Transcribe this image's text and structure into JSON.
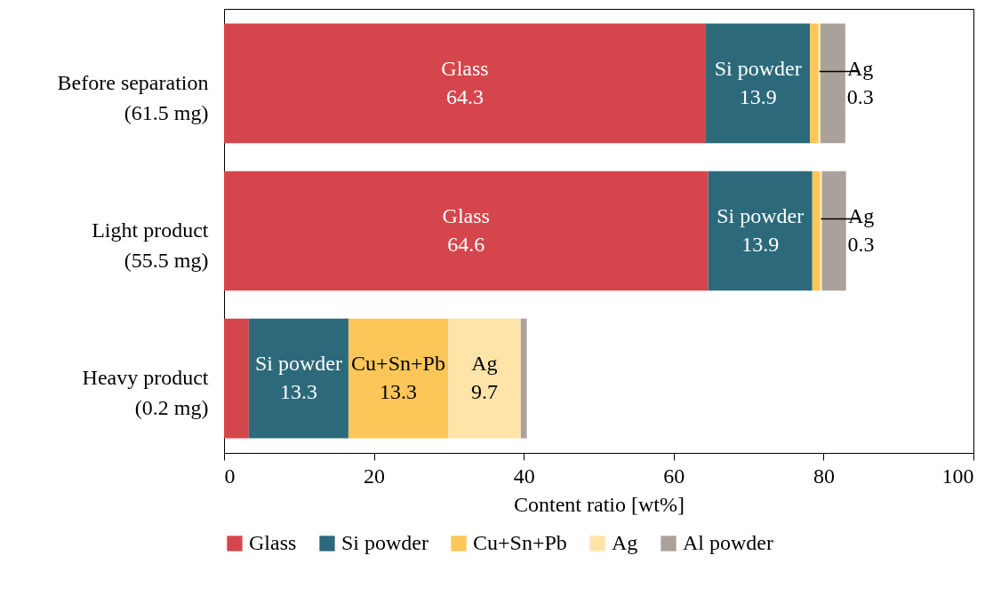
{
  "chart_data": {
    "type": "bar",
    "orientation": "horizontal",
    "stacked": true,
    "xlabel": "Content ratio [wt%]",
    "categories": [
      "Before separation\n(61.5 mg)",
      "Light product\n(55.5 mg)",
      "Heavy product\n(0.2 mg)"
    ],
    "series": [
      {
        "name": "Glass",
        "color": "#d5464c",
        "values": [
          64.3,
          64.6,
          3.3
        ],
        "value_labels": [
          "64.3",
          "64.6",
          null
        ]
      },
      {
        "name": "Si powder",
        "color": "#2c6a7b",
        "values": [
          13.9,
          13.9,
          13.3
        ],
        "value_labels": [
          "13.9",
          "13.9",
          "13.3"
        ]
      },
      {
        "name": "Cu+Sn+Pb",
        "color": "#fdc659",
        "values": [
          1.1,
          1.0,
          13.3
        ],
        "value_labels": [
          null,
          null,
          "13.3"
        ]
      },
      {
        "name": "Ag",
        "color": "#fee4a9",
        "values": [
          0.3,
          0.3,
          9.7
        ],
        "value_labels": [
          "0.3",
          "0.3",
          "9.7"
        ]
      },
      {
        "name": "Al powder",
        "color": "#aba19b",
        "values": [
          3.3,
          3.2,
          0.8
        ],
        "value_labels": [
          null,
          null,
          null
        ]
      }
    ],
    "xlim": [
      0,
      100
    ],
    "xticks": [
      0,
      20,
      40,
      60,
      80,
      100
    ],
    "legend": "bottom",
    "grid": false
  }
}
